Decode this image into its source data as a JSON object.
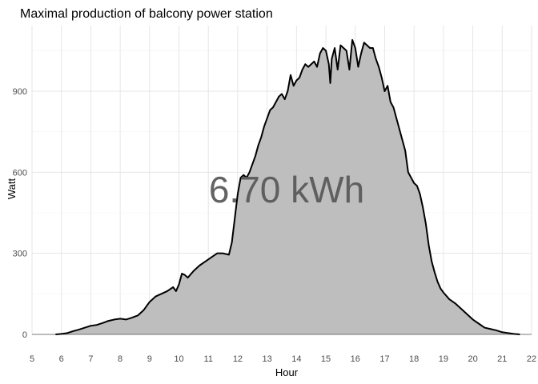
{
  "chart_data": {
    "type": "area",
    "title": "Maximal production of balcony power station",
    "xlabel": "Hour",
    "ylabel": "Watt",
    "xlim": [
      5,
      22
    ],
    "ylim": [
      0,
      1100
    ],
    "xticks": [
      5,
      6,
      7,
      8,
      9,
      10,
      11,
      12,
      13,
      14,
      15,
      16,
      17,
      18,
      19,
      20,
      21,
      22
    ],
    "yticks": [
      0,
      300,
      600,
      900
    ],
    "grid": true,
    "legend": "none",
    "annotation": "6.70 kWh",
    "colors": {
      "fill": "#bebebe",
      "line": "#000000",
      "baseline": "#555555"
    },
    "series": [
      {
        "x": [
          5.8,
          6.0,
          6.2,
          6.4,
          6.6,
          6.8,
          7.0,
          7.2,
          7.4,
          7.6,
          7.8,
          8.0,
          8.2,
          8.4,
          8.6,
          8.8,
          9.0,
          9.2,
          9.4,
          9.6,
          9.8,
          9.9,
          10.0,
          10.1,
          10.2,
          10.3,
          10.5,
          10.7,
          10.9,
          11.1,
          11.3,
          11.5,
          11.7,
          11.8,
          11.9,
          12.0,
          12.1,
          12.2,
          12.3,
          12.4,
          12.5,
          12.6,
          12.7,
          12.8,
          12.9,
          13.0,
          13.1,
          13.2,
          13.3,
          13.4,
          13.5,
          13.6,
          13.7,
          13.8,
          13.9,
          14.0,
          14.1,
          14.2,
          14.3,
          14.4,
          14.5,
          14.6,
          14.7,
          14.8,
          14.9,
          15.0,
          15.1,
          15.15,
          15.2,
          15.3,
          15.4,
          15.5,
          15.6,
          15.7,
          15.8,
          15.9,
          16.0,
          16.1,
          16.2,
          16.3,
          16.4,
          16.5,
          16.6,
          16.7,
          16.8,
          16.9,
          17.0,
          17.1,
          17.2,
          17.3,
          17.4,
          17.5,
          17.6,
          17.7,
          17.8,
          17.9,
          18.0,
          18.1,
          18.2,
          18.3,
          18.4,
          18.5,
          18.6,
          18.7,
          18.8,
          18.9,
          19.0,
          19.2,
          19.4,
          19.6,
          19.8,
          20.0,
          20.2,
          20.4,
          20.6,
          20.8,
          21.0,
          21.2,
          21.4,
          21.6
        ],
        "y": [
          0,
          2,
          5,
          12,
          18,
          25,
          32,
          35,
          42,
          50,
          55,
          58,
          55,
          62,
          70,
          90,
          120,
          140,
          150,
          160,
          175,
          160,
          185,
          225,
          220,
          210,
          235,
          255,
          270,
          285,
          300,
          300,
          295,
          340,
          430,
          520,
          580,
          590,
          580,
          600,
          630,
          660,
          700,
          730,
          770,
          800,
          830,
          840,
          860,
          880,
          890,
          870,
          900,
          960,
          920,
          940,
          950,
          980,
          1000,
          990,
          1000,
          1010,
          990,
          1040,
          1060,
          1050,
          1000,
          930,
          1020,
          1060,
          980,
          1070,
          1060,
          1050,
          980,
          1090,
          1060,
          990,
          1040,
          1080,
          1070,
          1060,
          1060,
          1020,
          990,
          950,
          900,
          920,
          860,
          840,
          800,
          760,
          720,
          680,
          600,
          580,
          560,
          550,
          520,
          470,
          410,
          330,
          270,
          230,
          195,
          170,
          155,
          130,
          115,
          95,
          75,
          55,
          40,
          25,
          20,
          15,
          8,
          5,
          2,
          0
        ]
      }
    ]
  }
}
